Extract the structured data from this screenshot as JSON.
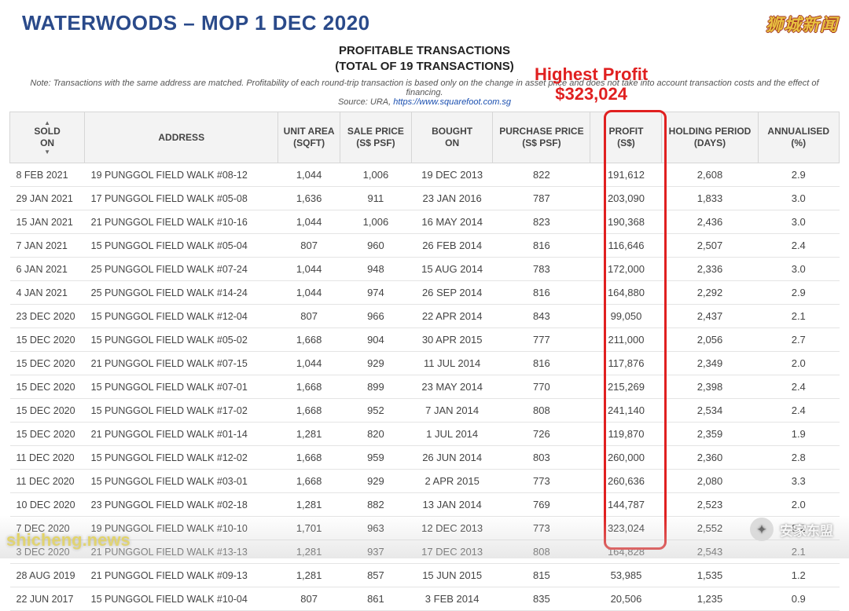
{
  "title": "WATERWOODS – MOP 1 DEC 2020",
  "subtitle": {
    "line1": "PROFITABLE TRANSACTIONS",
    "line2": "(TOTAL OF 19 TRANSACTIONS)"
  },
  "highlight": {
    "line1": "Highest Profit",
    "line2": "$323,024",
    "color": "#e02020"
  },
  "note": "Note: Transactions with the same address are matched. Profitability of each round-trip transaction is based only on the change in asset price and does not take into account transaction costs and the effect of financing.",
  "source_label": "Source: URA,",
  "source_link": "https://www.squarefoot.com.sg",
  "watermarks": {
    "top_right": "狮城新闻",
    "bottom_left": "shicheng.news",
    "bottom_right": "安家东盟"
  },
  "columns": [
    {
      "key": "sold",
      "label": "SOLD\nON",
      "class": "col-sold"
    },
    {
      "key": "addr",
      "label": "ADDRESS",
      "class": "col-addr"
    },
    {
      "key": "area",
      "label": "UNIT AREA\n(SQFT)",
      "class": "col-area"
    },
    {
      "key": "sale",
      "label": "SALE PRICE\n(S$ PSF)",
      "class": "col-sale"
    },
    {
      "key": "bought",
      "label": "BOUGHT\nON",
      "class": "col-bought"
    },
    {
      "key": "pp",
      "label": "PURCHASE PRICE\n(S$ PSF)",
      "class": "col-pp"
    },
    {
      "key": "profit",
      "label": "PROFIT\n(S$)",
      "class": "col-profit"
    },
    {
      "key": "hold",
      "label": "HOLDING PERIOD\n(DAYS)",
      "class": "col-hold"
    },
    {
      "key": "ann",
      "label": "ANNUALISED\n(%)",
      "class": "col-ann"
    }
  ],
  "rows": [
    {
      "sold": "8 FEB 2021",
      "addr": "19 PUNGGOL FIELD WALK #08-12",
      "area": "1,044",
      "sale": "1,006",
      "bought": "19 DEC 2013",
      "pp": "822",
      "profit": "191,612",
      "hold": "2,608",
      "ann": "2.9"
    },
    {
      "sold": "29 JAN 2021",
      "addr": "17 PUNGGOL FIELD WALK #05-08",
      "area": "1,636",
      "sale": "911",
      "bought": "23 JAN 2016",
      "pp": "787",
      "profit": "203,090",
      "hold": "1,833",
      "ann": "3.0"
    },
    {
      "sold": "15 JAN 2021",
      "addr": "21 PUNGGOL FIELD WALK #10-16",
      "area": "1,044",
      "sale": "1,006",
      "bought": "16 MAY 2014",
      "pp": "823",
      "profit": "190,368",
      "hold": "2,436",
      "ann": "3.0"
    },
    {
      "sold": "7 JAN 2021",
      "addr": "15 PUNGGOL FIELD WALK #05-04",
      "area": "807",
      "sale": "960",
      "bought": "26 FEB 2014",
      "pp": "816",
      "profit": "116,646",
      "hold": "2,507",
      "ann": "2.4"
    },
    {
      "sold": "6 JAN 2021",
      "addr": "25 PUNGGOL FIELD WALK #07-24",
      "area": "1,044",
      "sale": "948",
      "bought": "15 AUG 2014",
      "pp": "783",
      "profit": "172,000",
      "hold": "2,336",
      "ann": "3.0"
    },
    {
      "sold": "4 JAN 2021",
      "addr": "25 PUNGGOL FIELD WALK #14-24",
      "area": "1,044",
      "sale": "974",
      "bought": "26 SEP 2014",
      "pp": "816",
      "profit": "164,880",
      "hold": "2,292",
      "ann": "2.9"
    },
    {
      "sold": "23 DEC 2020",
      "addr": "15 PUNGGOL FIELD WALK #12-04",
      "area": "807",
      "sale": "966",
      "bought": "22 APR 2014",
      "pp": "843",
      "profit": "99,050",
      "hold": "2,437",
      "ann": "2.1"
    },
    {
      "sold": "15 DEC 2020",
      "addr": "15 PUNGGOL FIELD WALK #05-02",
      "area": "1,668",
      "sale": "904",
      "bought": "30 APR 2015",
      "pp": "777",
      "profit": "211,000",
      "hold": "2,056",
      "ann": "2.7"
    },
    {
      "sold": "15 DEC 2020",
      "addr": "21 PUNGGOL FIELD WALK #07-15",
      "area": "1,044",
      "sale": "929",
      "bought": "11 JUL 2014",
      "pp": "816",
      "profit": "117,876",
      "hold": "2,349",
      "ann": "2.0"
    },
    {
      "sold": "15 DEC 2020",
      "addr": "15 PUNGGOL FIELD WALK #07-01",
      "area": "1,668",
      "sale": "899",
      "bought": "23 MAY 2014",
      "pp": "770",
      "profit": "215,269",
      "hold": "2,398",
      "ann": "2.4"
    },
    {
      "sold": "15 DEC 2020",
      "addr": "15 PUNGGOL FIELD WALK #17-02",
      "area": "1,668",
      "sale": "952",
      "bought": "7 JAN 2014",
      "pp": "808",
      "profit": "241,140",
      "hold": "2,534",
      "ann": "2.4"
    },
    {
      "sold": "15 DEC 2020",
      "addr": "21 PUNGGOL FIELD WALK #01-14",
      "area": "1,281",
      "sale": "820",
      "bought": "1 JUL 2014",
      "pp": "726",
      "profit": "119,870",
      "hold": "2,359",
      "ann": "1.9"
    },
    {
      "sold": "11 DEC 2020",
      "addr": "15 PUNGGOL FIELD WALK #12-02",
      "area": "1,668",
      "sale": "959",
      "bought": "26 JUN 2014",
      "pp": "803",
      "profit": "260,000",
      "hold": "2,360",
      "ann": "2.8"
    },
    {
      "sold": "11 DEC 2020",
      "addr": "15 PUNGGOL FIELD WALK #03-01",
      "area": "1,668",
      "sale": "929",
      "bought": "2 APR 2015",
      "pp": "773",
      "profit": "260,636",
      "hold": "2,080",
      "ann": "3.3"
    },
    {
      "sold": "10 DEC 2020",
      "addr": "23 PUNGGOL FIELD WALK #02-18",
      "area": "1,281",
      "sale": "882",
      "bought": "13 JAN 2014",
      "pp": "769",
      "profit": "144,787",
      "hold": "2,523",
      "ann": "2.0"
    },
    {
      "sold": "7 DEC 2020",
      "addr": "19 PUNGGOL FIELD WALK #10-10",
      "area": "1,701",
      "sale": "963",
      "bought": "12 DEC 2013",
      "pp": "773",
      "profit": "323,024",
      "hold": "2,552",
      "ann": "3.2"
    },
    {
      "sold": "3 DEC 2020",
      "addr": "21 PUNGGOL FIELD WALK #13-13",
      "area": "1,281",
      "sale": "937",
      "bought": "17 DEC 2013",
      "pp": "808",
      "profit": "164,828",
      "hold": "2,543",
      "ann": "2.1"
    },
    {
      "sold": "28 AUG 2019",
      "addr": "21 PUNGGOL FIELD WALK #09-13",
      "area": "1,281",
      "sale": "857",
      "bought": "15 JUN 2015",
      "pp": "815",
      "profit": "53,985",
      "hold": "1,535",
      "ann": "1.2"
    },
    {
      "sold": "22 JUN 2017",
      "addr": "15 PUNGGOL FIELD WALK #10-04",
      "area": "807",
      "sale": "861",
      "bought": "3 FEB 2014",
      "pp": "835",
      "profit": "20,506",
      "hold": "1,235",
      "ann": "0.9"
    }
  ],
  "styling": {
    "title_color": "#2a4a8a",
    "highlight_color": "#e02020",
    "header_bg": "#f3f3f3",
    "border_color": "#d6d6d6",
    "row_border": "#e4e4e4",
    "text_color": "#444",
    "font_family": "Arial",
    "title_fontsize": 26,
    "body_fontsize": 13,
    "profit_box": {
      "border_color": "#e02020",
      "border_width": 3,
      "radius": 10
    }
  }
}
